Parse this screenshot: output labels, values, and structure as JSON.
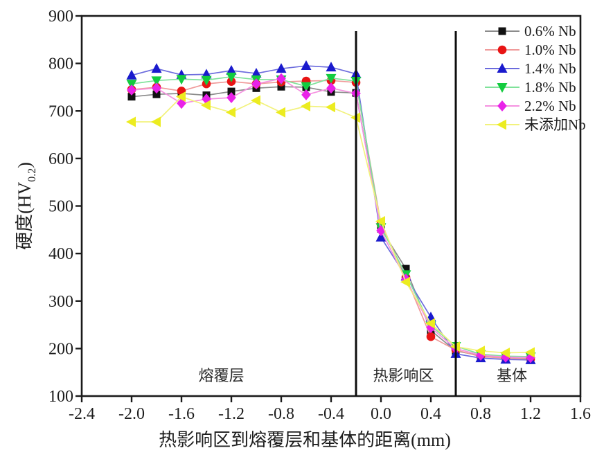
{
  "chart_data": {
    "type": "line",
    "title": "",
    "xlabel": "热影响区到熔覆层和基体的距离(mm)",
    "ylabel": {
      "main": "硬度(HV",
      "sub": "0.2",
      "suffix": ")"
    },
    "xlim": [
      -2.4,
      1.6
    ],
    "ylim": [
      100,
      900
    ],
    "grid": false,
    "legend_position": "top-right",
    "x_tick_values": [
      -2.4,
      -2.0,
      -1.6,
      -1.2,
      -0.8,
      -0.4,
      0.0,
      0.4,
      0.8,
      1.2,
      1.6
    ],
    "x_tick_labels": [
      "-2.4",
      "-2.0",
      "-1.6",
      "-1.2",
      "-0.8",
      "-0.4",
      "0.0",
      "0.4",
      "0.8",
      "1.2",
      "1.6"
    ],
    "y_tick_values": [
      100,
      200,
      300,
      400,
      500,
      600,
      700,
      800,
      900
    ],
    "y_tick_labels": [
      "100",
      "200",
      "300",
      "400",
      "500",
      "600",
      "700",
      "800",
      "900"
    ],
    "x": [
      -2.0,
      -1.8,
      -1.6,
      -1.4,
      -1.2,
      -1.0,
      -0.8,
      -0.6,
      -0.4,
      -0.2,
      0.0,
      0.2,
      0.4,
      0.6,
      0.8,
      1.0,
      1.2
    ],
    "series": [
      {
        "name": "0.6% Nb",
        "marker": "square",
        "color": "#111111",
        "line_color": "#8c8c8c",
        "values": [
          730,
          735,
          737,
          733,
          741,
          748,
          751,
          750,
          740,
          738,
          452,
          368,
          238,
          195,
          185,
          182,
          180
        ]
      },
      {
        "name": "1.0% Nb",
        "marker": "circle",
        "color": "#e81414",
        "line_color": "#f09a9a",
        "values": [
          745,
          750,
          742,
          757,
          762,
          757,
          761,
          763,
          764,
          760,
          462,
          350,
          225,
          197,
          183,
          180,
          178
        ]
      },
      {
        "name": "1.4% Nb",
        "marker": "triangle-up",
        "color": "#1a1acd",
        "line_color": "#6b6bdd",
        "values": [
          775,
          789,
          776,
          777,
          785,
          779,
          789,
          795,
          792,
          778,
          434,
          352,
          266,
          189,
          180,
          177,
          176
        ]
      },
      {
        "name": "1.8% Nb",
        "marker": "triangle-down",
        "color": "#13cc3f",
        "line_color": "#7fe29a",
        "values": [
          757,
          764,
          767,
          765,
          772,
          766,
          766,
          752,
          769,
          763,
          455,
          356,
          248,
          205,
          188,
          184,
          183
        ]
      },
      {
        "name": "2.2% Nb",
        "marker": "diamond",
        "color": "#e922e9",
        "line_color": "#f591e0",
        "values": [
          744,
          748,
          716,
          725,
          728,
          757,
          768,
          734,
          748,
          737,
          448,
          346,
          244,
          200,
          186,
          182,
          181
        ]
      },
      {
        "name": "未添加Nb",
        "marker": "triangle-left",
        "color": "#ecec20",
        "line_color": "#f2f27d",
        "values": [
          677,
          677,
          730,
          712,
          697,
          722,
          697,
          710,
          708,
          686,
          468,
          340,
          253,
          204,
          195,
          191,
          192
        ]
      }
    ],
    "region_lines_x": [
      -0.2,
      0.6
    ],
    "region_labels": [
      {
        "text": "熔覆层",
        "x": -1.28,
        "y": 144
      },
      {
        "text": "热影响区",
        "x": 0.18,
        "y": 144
      },
      {
        "text": "基体",
        "x": 1.05,
        "y": 144
      }
    ]
  },
  "style": {
    "axis_color": "#1a1a1a",
    "text_color": "#1d1d1d",
    "background": "#ffffff"
  }
}
